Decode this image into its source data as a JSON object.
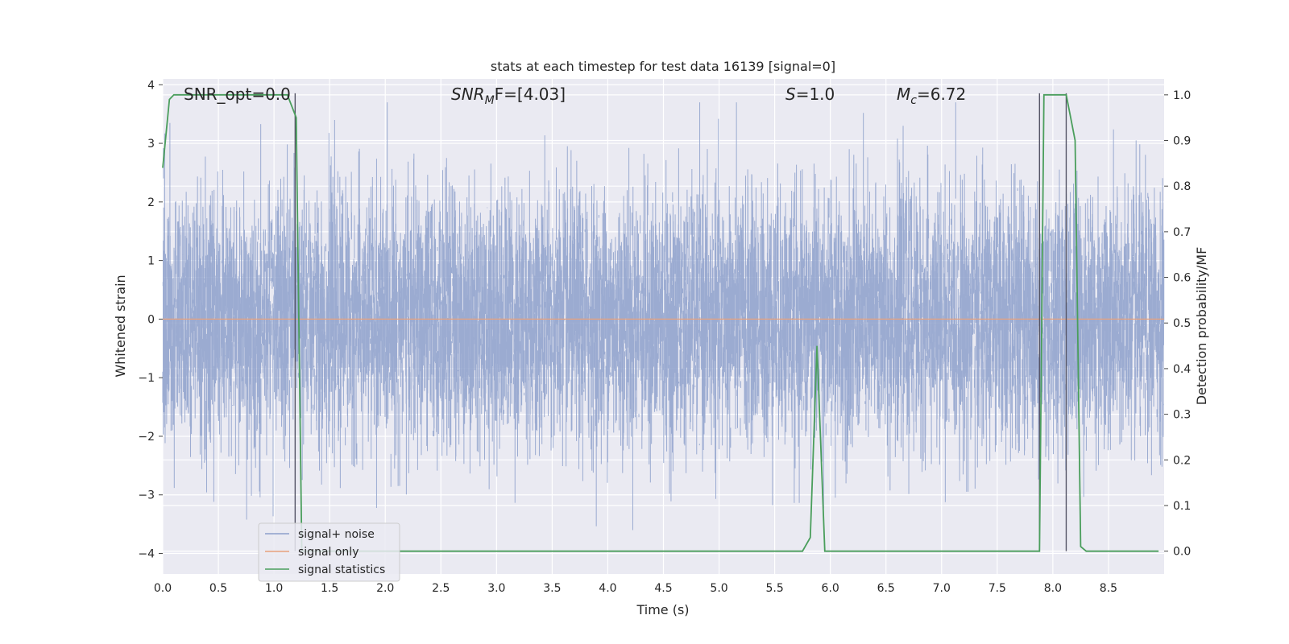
{
  "chart_data": {
    "type": "line",
    "title": "stats at each timestep for test data 16139 [signal=0]",
    "xlabel": "Time (s)",
    "ylabel": "Whitened strain",
    "y2label": "Detection probability/MF",
    "xlim": [
      0.0,
      9.0
    ],
    "ylim": [
      -4.35,
      4.1
    ],
    "y2lim": [
      -0.05,
      1.035
    ],
    "xticks": [
      "0.0",
      "0.5",
      "1.0",
      "1.5",
      "2.0",
      "2.5",
      "3.0",
      "3.5",
      "4.0",
      "4.5",
      "5.0",
      "5.5",
      "6.0",
      "6.5",
      "7.0",
      "7.5",
      "8.0",
      "8.5"
    ],
    "yticks": [
      "4",
      "3",
      "2",
      "1",
      "0",
      "−1",
      "−2",
      "−3",
      "−4"
    ],
    "y2ticks": [
      "1.0",
      "0.9",
      "0.8",
      "0.7",
      "0.6",
      "0.5",
      "0.4",
      "0.3",
      "0.2",
      "0.1",
      "0.0"
    ],
    "grid": true,
    "legend_position": "lower-left",
    "annotations": {
      "snr_opt": "SNR_opt=0.0",
      "snr_mf_main": "SNR",
      "snr_mf_sub": "M",
      "snr_mf_rest": "F=[4.03]",
      "s_main": "S",
      "s_rest": "=1.0",
      "mc_main": "M",
      "mc_sub": "c",
      "mc_rest": "=6.72"
    },
    "series": [
      {
        "name": "signal+ noise",
        "color": "#8da0cb",
        "kind": "noise",
        "sample_rate_hz": 512,
        "amplitude_envelope": [
          -4.0,
          3.7
        ]
      },
      {
        "name": "signal only",
        "color": "#e8a17c",
        "kind": "constant",
        "value": 0.0
      },
      {
        "name": "signal statistics",
        "color": "#4a9e5c",
        "kind": "probability",
        "points": [
          [
            0.0,
            0.84
          ],
          [
            0.06,
            0.99
          ],
          [
            0.1,
            1.0
          ],
          [
            1.12,
            1.0
          ],
          [
            1.2,
            0.95
          ],
          [
            1.25,
            0.0
          ],
          [
            5.75,
            0.0
          ],
          [
            5.82,
            0.03
          ],
          [
            5.88,
            0.45
          ],
          [
            5.95,
            0.0
          ],
          [
            7.88,
            0.0
          ],
          [
            7.92,
            1.0
          ],
          [
            8.12,
            1.0
          ],
          [
            8.2,
            0.9
          ],
          [
            8.25,
            0.01
          ],
          [
            8.3,
            0.0
          ],
          [
            8.95,
            0.0
          ]
        ]
      }
    ],
    "vertical_markers": [
      1.19,
      7.88,
      8.12
    ]
  }
}
